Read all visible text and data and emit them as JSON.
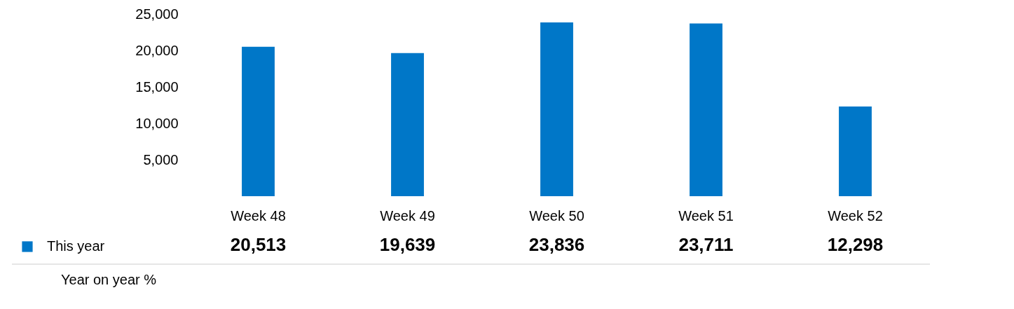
{
  "chart_data": {
    "type": "bar",
    "categories": [
      "Week 48",
      "Week 49",
      "Week 50",
      "Week 51",
      "Week 52"
    ],
    "series": [
      {
        "name": "This year",
        "color": "#0077c8",
        "values": [
          20513,
          19639,
          23836,
          23711,
          12298
        ],
        "value_labels": [
          "20,513",
          "19,639",
          "23,836",
          "23,711",
          "12,298"
        ]
      }
    ],
    "ylim": [
      0,
      25000
    ],
    "yticks": [
      {
        "value": 5000,
        "label": "5,000"
      },
      {
        "value": 10000,
        "label": "10,000"
      },
      {
        "value": 15000,
        "label": "15,000"
      },
      {
        "value": 20000,
        "label": "20,000"
      },
      {
        "value": 25000,
        "label": "25,000"
      }
    ],
    "legend": "bottom left",
    "grid": false,
    "annotations": [
      "Year on year %"
    ]
  }
}
